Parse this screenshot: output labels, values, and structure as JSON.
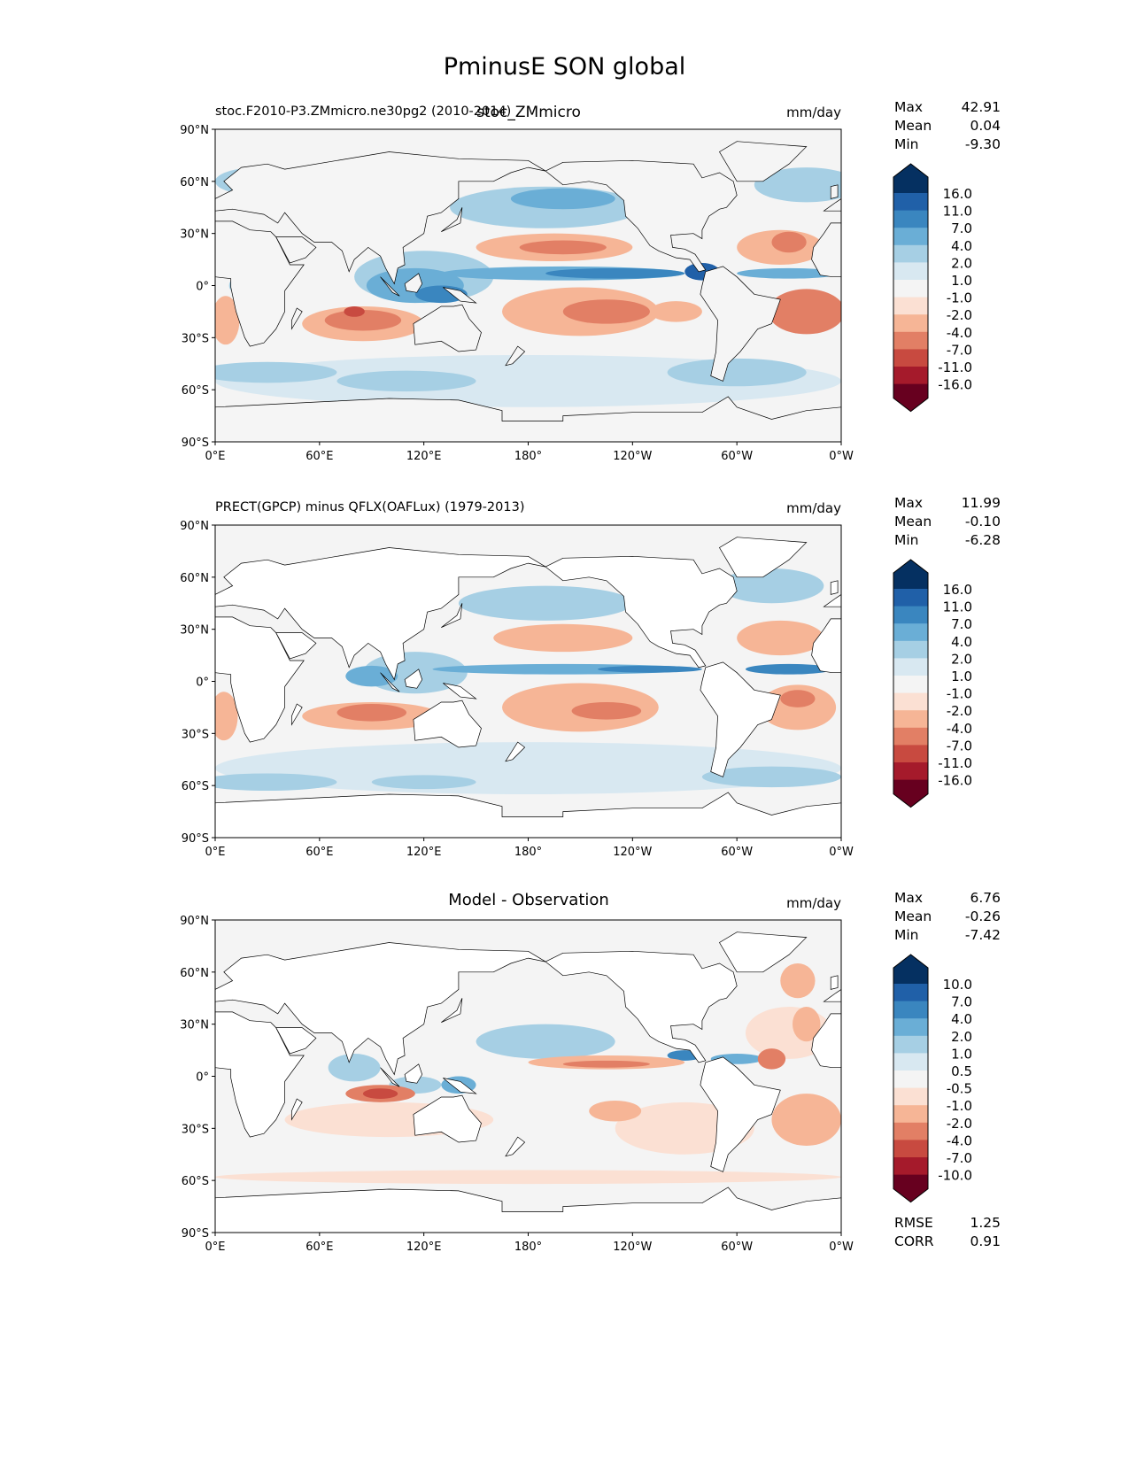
{
  "title": "PminusE SON global",
  "x_ticks": [
    "0°E",
    "60°E",
    "120°E",
    "180°",
    "120°W",
    "60°W",
    "0°W"
  ],
  "y_ticks": [
    "90°N",
    "60°N",
    "30°N",
    "0°",
    "30°S",
    "60°S",
    "90°S"
  ],
  "panels": [
    {
      "left_title": "stoc.F2010-P3.ZMmicro.ne30pg2 (2010-2014)",
      "center_title": "stoc_ZMmicro",
      "units": "mm/day",
      "stats": [
        {
          "label": "Max",
          "value": "42.91"
        },
        {
          "label": "Mean",
          "value": "0.04"
        },
        {
          "label": "Min",
          "value": "-9.30"
        }
      ],
      "levels": [
        "16.0",
        "11.0",
        "7.0",
        "4.0",
        "2.0",
        "1.0",
        "-1.0",
        "-2.0",
        "-4.0",
        "-7.0",
        "-11.0",
        "-16.0"
      ]
    },
    {
      "left_title": "PRECT(GPCP) minus QFLX(OAFLux) (1979-2013)",
      "center_title": "",
      "units": "mm/day",
      "stats": [
        {
          "label": "Max",
          "value": "11.99"
        },
        {
          "label": "Mean",
          "value": "-0.10"
        },
        {
          "label": "Min",
          "value": "-6.28"
        }
      ],
      "levels": [
        "16.0",
        "11.0",
        "7.0",
        "4.0",
        "2.0",
        "1.0",
        "-1.0",
        "-2.0",
        "-4.0",
        "-7.0",
        "-11.0",
        "-16.0"
      ]
    },
    {
      "left_title": "",
      "center_title": "Model - Observation",
      "units": "mm/day",
      "stats": [
        {
          "label": "Max",
          "value": "6.76"
        },
        {
          "label": "Mean",
          "value": "-0.26"
        },
        {
          "label": "Min",
          "value": "-7.42"
        }
      ],
      "levels": [
        "10.0",
        "7.0",
        "4.0",
        "2.0",
        "1.0",
        "0.5",
        "-0.5",
        "-1.0",
        "-2.0",
        "-4.0",
        "-7.0",
        "-10.0"
      ],
      "metrics": [
        {
          "label": "RMSE",
          "value": "1.25"
        },
        {
          "label": "CORR",
          "value": "0.91"
        }
      ]
    }
  ],
  "colormap": [
    "#053061",
    "#2060a8",
    "#3a86bf",
    "#6aaed6",
    "#a6cfe4",
    "#d8e8f1",
    "#f4f4f4",
    "#fbe0d3",
    "#f6b596",
    "#e27f65",
    "#c84a40",
    "#a51a2b",
    "#67001f"
  ]
}
